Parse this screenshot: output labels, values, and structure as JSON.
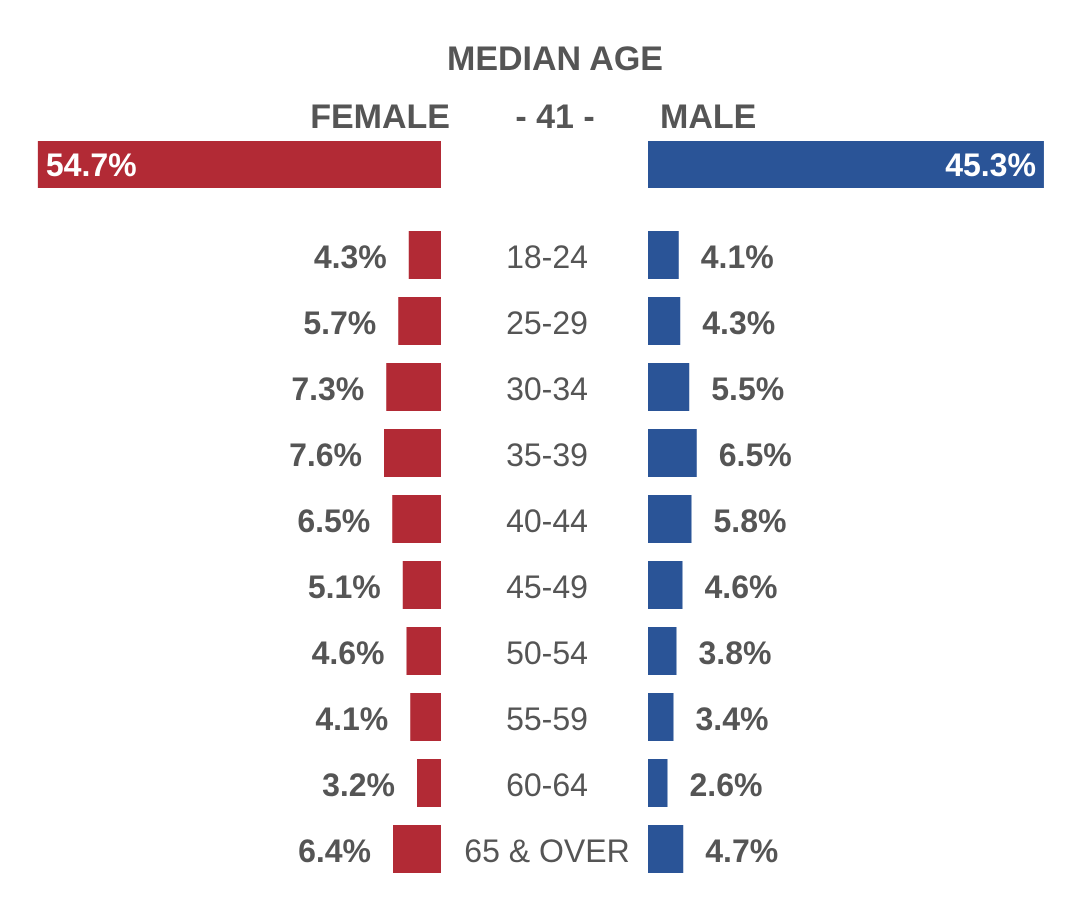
{
  "colors": {
    "female": "#b22a35",
    "male": "#2a5497",
    "text": "#555555",
    "bar_label": "#ffffff"
  },
  "chart_data": {
    "type": "bar",
    "title": "MEDIAN AGE",
    "median_age": "- 41 -",
    "female_label": "FEMALE",
    "male_label": "MALE",
    "totals": {
      "female": 54.7,
      "male": 45.3,
      "female_label": "54.7%",
      "male_label": "45.3%"
    },
    "categories": [
      "18-24",
      "25-29",
      "30-34",
      "35-39",
      "40-44",
      "45-49",
      "50-54",
      "55-59",
      "60-64",
      "65 & OVER"
    ],
    "series": [
      {
        "name": "FEMALE",
        "values": [
          4.3,
          5.7,
          7.3,
          7.6,
          6.5,
          5.1,
          4.6,
          4.1,
          3.2,
          6.4
        ],
        "labels": [
          "4.3%",
          "5.7%",
          "7.3%",
          "7.6%",
          "6.5%",
          "5.1%",
          "4.6%",
          "4.1%",
          "3.2%",
          "6.4%"
        ]
      },
      {
        "name": "MALE",
        "values": [
          4.1,
          4.3,
          5.5,
          6.5,
          5.8,
          4.6,
          3.8,
          3.4,
          2.6,
          4.7
        ],
        "labels": [
          "4.1%",
          "4.3%",
          "5.5%",
          "6.5%",
          "5.8%",
          "4.6%",
          "3.8%",
          "3.4%",
          "2.6%",
          "4.7%"
        ]
      }
    ]
  }
}
